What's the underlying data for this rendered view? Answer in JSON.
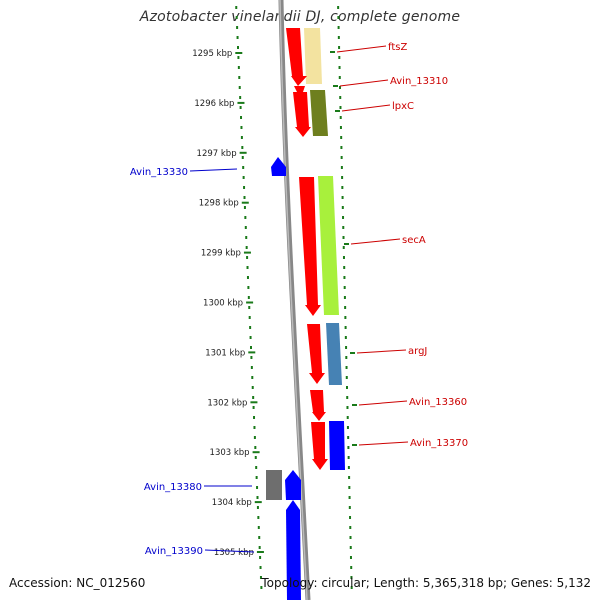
{
  "title": "Azotobacter vinelandii DJ, complete genome",
  "footer": {
    "accession": "Accession: NC_012560",
    "summary": "Topology: circular; Length: 5,365,318 bp; Genes: 5,132"
  },
  "ticks": [
    "1295 kbp",
    "1296 kbp",
    "1297 kbp",
    "1298 kbp",
    "1299 kbp",
    "1300 kbp",
    "1301 kbp",
    "1302 kbp",
    "1303 kbp",
    "1304 kbp",
    "1305 kbp"
  ],
  "genes_right": [
    {
      "label": "ftsZ",
      "color": "#cc0000"
    },
    {
      "label": "Avin_13310",
      "color": "#cc0000"
    },
    {
      "label": "lpxC",
      "color": "#cc0000"
    },
    {
      "label": "secA",
      "color": "#cc0000"
    },
    {
      "label": "argJ",
      "color": "#cc0000"
    },
    {
      "label": "Avin_13360",
      "color": "#cc0000"
    },
    {
      "label": "Avin_13370",
      "color": "#cc0000"
    }
  ],
  "genes_left": [
    {
      "label": "Avin_13330",
      "color": "#0000cc"
    },
    {
      "label": "Avin_13380",
      "color": "#0000cc"
    },
    {
      "label": "Avin_13390",
      "color": "#0000cc"
    }
  ],
  "colors": {
    "tick_green": "#1a7a1a",
    "backbone": "#888888",
    "cds_red": "#ff0000",
    "cds_blue": "#0000ff",
    "cds_gray": "#6e6e6e",
    "cog_tan": "#f3e3a0",
    "cog_olive": "#6e7f1e",
    "cog_lime": "#a8f03c",
    "cog_steel": "#4682b4"
  }
}
